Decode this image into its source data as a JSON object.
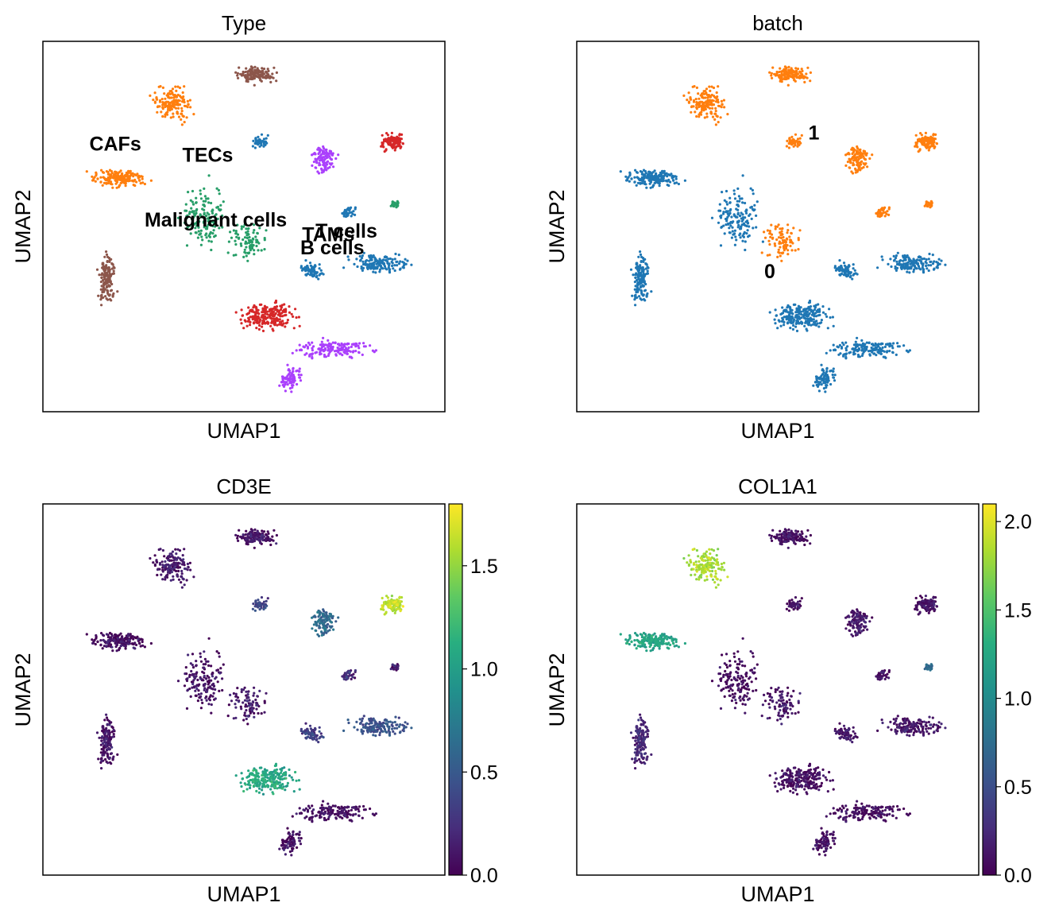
{
  "chart_data": [
    {
      "type": "scatter",
      "title": "Type",
      "xlabel": "UMAP1",
      "ylabel": "UMAP2",
      "color_mode": "categorical",
      "categories": [
        {
          "name": "B cells",
          "color": "#1f77b4"
        },
        {
          "name": "CAFs",
          "color": "#ff7f0e"
        },
        {
          "name": "Malignant cells",
          "color": "#279e68"
        },
        {
          "name": "TAMs",
          "color": "#d62728"
        },
        {
          "name": "T cells",
          "color": "#aa40fc"
        },
        {
          "name": "TECs",
          "color": "#8c564b"
        }
      ],
      "labels": [
        {
          "text": "CAFs",
          "x": 1.8,
          "y": 7.05
        },
        {
          "text": "TECs",
          "x": 4.1,
          "y": 6.75
        },
        {
          "text": "Malignant cells",
          "x": 4.3,
          "y": 5.0
        },
        {
          "text": "TAMs",
          "x": 7.1,
          "y": 4.6
        },
        {
          "text": "T cells",
          "x": 7.55,
          "y": 4.7
        },
        {
          "text": "B cells",
          "x": 7.2,
          "y": 4.25
        }
      ],
      "grid": false,
      "legend": "on data"
    },
    {
      "type": "scatter",
      "title": "batch",
      "xlabel": "UMAP1",
      "ylabel": "UMAP2",
      "color_mode": "categorical",
      "categories": [
        {
          "name": "0",
          "color": "#1f77b4"
        },
        {
          "name": "1",
          "color": "#ff7f0e"
        }
      ],
      "labels": [
        {
          "text": "1",
          "x": 5.9,
          "y": 7.35
        },
        {
          "text": "0",
          "x": 4.8,
          "y": 3.6
        }
      ],
      "grid": false,
      "legend": "on data"
    },
    {
      "type": "scatter",
      "title": "CD3E",
      "xlabel": "UMAP1",
      "ylabel": "UMAP2",
      "color_mode": "continuous",
      "colormap": "viridis",
      "colorbar": {
        "min": 0.0,
        "max": 1.8,
        "ticks": [
          "0.0",
          "0.5",
          "1.0",
          "1.5"
        ]
      },
      "grid": false
    },
    {
      "type": "scatter",
      "title": "COL1A1",
      "xlabel": "UMAP1",
      "ylabel": "UMAP2",
      "color_mode": "continuous",
      "colormap": "viridis",
      "colorbar": {
        "min": 0.0,
        "max": 2.1,
        "ticks": [
          "0.0",
          "0.5",
          "1.0",
          "1.5",
          "2.0"
        ]
      },
      "grid": false
    }
  ]
}
